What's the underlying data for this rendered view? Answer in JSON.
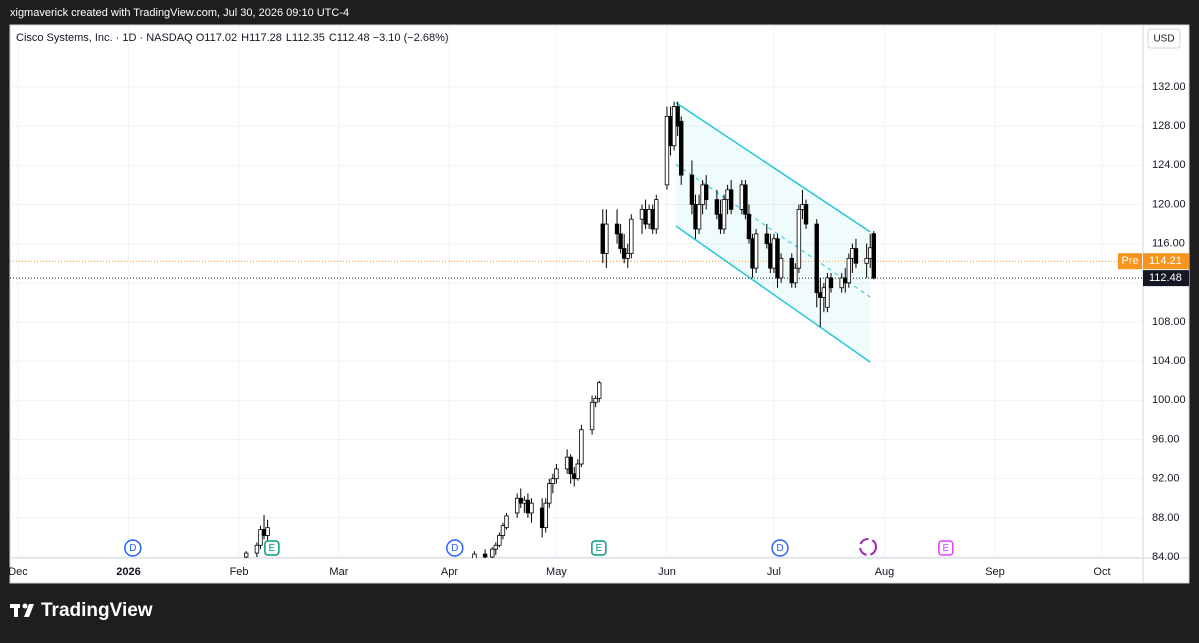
{
  "header": {
    "text": "xigmaverick created with TradingView.com, Jul 30, 2026 09:10 UTC-4"
  },
  "chart_data": {
    "type": "candlestick",
    "symbol": "Cisco Systems, Inc. · 1D · NASDAQ",
    "ohlc_labels": [
      {
        "key": "O",
        "value": 117.02
      },
      {
        "key": "H",
        "value": 117.28
      },
      {
        "key": "L",
        "value": 112.35
      },
      {
        "key": "C",
        "value": 112.48
      }
    ],
    "change": "−3.10 (−2.68%)",
    "currency": "USD",
    "x": [
      64,
      67,
      68,
      69,
      70,
      128,
      131,
      133,
      134,
      135,
      136,
      137,
      140,
      141,
      142,
      143,
      144,
      147,
      148,
      149,
      150,
      151,
      154,
      155,
      156,
      157,
      158,
      161,
      162,
      163,
      164,
      165,
      168,
      169,
      170,
      171,
      172,
      175,
      176,
      177,
      178,
      179,
      182,
      183,
      184,
      185,
      186,
      189,
      190,
      191,
      192,
      193,
      196,
      197,
      198,
      199,
      200,
      203,
      204,
      205,
      206,
      207,
      210,
      211,
      212,
      213,
      214,
      217,
      218,
      219,
      220,
      221,
      224,
      225,
      226,
      227,
      228,
      231,
      232,
      233,
      234,
      235,
      238,
      239,
      240
    ],
    "open": [
      84.0,
      84.4,
      85.2,
      86.8,
      86.2,
      83.8,
      84.3,
      84.0,
      84.8,
      85.2,
      86.2,
      87.0,
      88.5,
      90.0,
      89.5,
      89.8,
      88.5,
      89.0,
      87.0,
      89.5,
      91.5,
      92.0,
      93.0,
      94.2,
      92.5,
      92.0,
      93.5,
      97.0,
      99.8,
      100.2,
      118.0,
      115.0,
      118.0,
      117.0,
      115.5,
      114.5,
      115.0,
      118.5,
      119.5,
      118.0,
      119.5,
      117.5,
      122.0,
      129.0,
      126.0,
      130.0,
      128.5,
      123.0,
      120.0,
      117.5,
      120.0,
      122.0,
      120.5,
      119.0,
      117.5,
      120.5,
      121.5,
      119.5,
      122.0,
      119.0,
      116.5,
      113.5,
      117.0,
      116.0,
      113.5,
      116.5,
      112.5,
      114.5,
      112.0,
      113.5,
      119.5,
      120.0,
      118.0,
      111.0,
      110.5,
      109.5,
      112.5,
      111.5,
      112.5,
      112.0,
      114.5,
      115.5,
      114.0,
      114.5,
      117.02
    ],
    "high": [
      84.6,
      85.5,
      87.2,
      88.3,
      87.8,
      84.6,
      84.8,
      85.0,
      85.5,
      86.5,
      87.5,
      88.5,
      90.5,
      91.0,
      90.2,
      90.5,
      90.0,
      90.0,
      90.0,
      92.0,
      92.5,
      93.5,
      95.0,
      94.5,
      93.2,
      94.0,
      97.5,
      100.5,
      100.5,
      102.0,
      119.5,
      119.5,
      119.5,
      118.0,
      117.0,
      116.0,
      119.0,
      120.0,
      120.5,
      120.0,
      120.0,
      121.0,
      130.0,
      130.0,
      130.5,
      130.5,
      129.0,
      124.5,
      121.0,
      121.0,
      122.5,
      123.0,
      121.5,
      120.5,
      121.0,
      122.0,
      122.5,
      122.5,
      122.5,
      120.0,
      117.0,
      117.5,
      118.0,
      117.0,
      117.0,
      117.0,
      115.0,
      115.0,
      114.0,
      120.0,
      121.5,
      120.5,
      118.5,
      112.5,
      112.0,
      113.0,
      113.0,
      113.0,
      113.5,
      115.0,
      116.0,
      116.5,
      116.0,
      117.0,
      117.28
    ],
    "low": [
      83.7,
      84.0,
      84.8,
      85.8,
      85.5,
      83.5,
      83.6,
      83.8,
      84.2,
      85.0,
      85.8,
      86.8,
      88.0,
      89.0,
      88.5,
      88.0,
      87.5,
      86.0,
      86.5,
      89.0,
      90.5,
      91.5,
      92.5,
      91.5,
      91.2,
      91.8,
      93.2,
      96.5,
      99.3,
      99.8,
      114.0,
      113.5,
      116.0,
      115.0,
      114.0,
      113.5,
      114.5,
      117.0,
      117.5,
      117.5,
      117.0,
      117.0,
      121.5,
      125.0,
      125.5,
      127.0,
      122.0,
      119.0,
      116.5,
      117.0,
      119.0,
      119.5,
      118.5,
      117.0,
      117.0,
      119.0,
      119.0,
      119.0,
      118.5,
      116.0,
      112.5,
      113.0,
      115.5,
      113.0,
      113.0,
      111.5,
      112.0,
      111.5,
      111.5,
      113.0,
      118.5,
      117.5,
      109.5,
      107.5,
      109.0,
      109.0,
      111.0,
      111.0,
      111.0,
      111.5,
      113.0,
      113.5,
      112.5,
      113.5,
      112.35
    ],
    "close": [
      84.4,
      85.2,
      86.8,
      86.2,
      87.0,
      84.3,
      84.0,
      84.8,
      85.2,
      86.2,
      87.2,
      88.2,
      90.0,
      89.5,
      89.8,
      88.5,
      89.5,
      87.0,
      89.5,
      91.5,
      92.0,
      93.0,
      94.2,
      92.5,
      92.0,
      93.5,
      97.0,
      99.8,
      100.2,
      101.8,
      115.0,
      118.0,
      117.0,
      115.5,
      114.5,
      115.0,
      118.5,
      119.5,
      118.0,
      119.5,
      117.5,
      120.5,
      129.0,
      126.0,
      130.0,
      128.0,
      123.0,
      120.0,
      117.5,
      120.0,
      122.0,
      120.5,
      119.0,
      117.5,
      120.5,
      121.5,
      119.5,
      122.0,
      119.0,
      116.5,
      113.5,
      117.0,
      116.0,
      113.5,
      116.5,
      112.5,
      114.5,
      112.0,
      113.5,
      119.5,
      120.0,
      118.0,
      111.0,
      110.5,
      111.5,
      112.5,
      111.5,
      112.5,
      112.0,
      114.5,
      115.5,
      114.0,
      114.5,
      115.58,
      112.48
    ],
    "up_color": "#ffffff",
    "down_color": "#000000",
    "xlim": [
      -2.24,
      315.5
    ],
    "xticks": [
      {
        "value": 0,
        "label": "Dec"
      },
      {
        "value": 31,
        "label": "2026"
      },
      {
        "value": 62,
        "label": "Feb"
      },
      {
        "value": 90,
        "label": "Mar"
      },
      {
        "value": 121,
        "label": "Apr"
      },
      {
        "value": 151,
        "label": "May"
      },
      {
        "value": 182,
        "label": "Jun"
      },
      {
        "value": 212,
        "label": "Jul"
      },
      {
        "value": 243,
        "label": "Aug"
      },
      {
        "value": 274,
        "label": "Sep"
      },
      {
        "value": 304,
        "label": "Oct"
      }
    ],
    "ylim": [
      83.9,
      138.33
    ],
    "yticks": [
      {
        "value": 84,
        "label": "84.00"
      },
      {
        "value": 88,
        "label": "88.00"
      },
      {
        "value": 92,
        "label": "92.00"
      },
      {
        "value": 96,
        "label": "96.00"
      },
      {
        "value": 100,
        "label": "100.00"
      },
      {
        "value": 104,
        "label": "104.00"
      },
      {
        "value": 108,
        "label": "108.00"
      },
      {
        "value": 112,
        "label": "112.00"
      },
      {
        "value": 116,
        "label": "116.00"
      },
      {
        "value": 120,
        "label": "120.00"
      },
      {
        "value": 124,
        "label": "124.00"
      },
      {
        "value": 128,
        "label": "128.00"
      },
      {
        "value": 132,
        "label": "132.00"
      }
    ],
    "grid": true,
    "price_lines": [
      {
        "name": "Pre",
        "value": 114.21,
        "color": "#f7941d"
      },
      {
        "value": 112.48,
        "color": "#131722"
      }
    ],
    "channel": {
      "color": "#26c6da",
      "upper": [
        {
          "x": 184.5,
          "y": 130.4
        },
        {
          "x": 239,
          "y": 117.2
        }
      ],
      "lower": [
        {
          "x": 184.5,
          "y": 117.8
        },
        {
          "x": 239,
          "y": 103.9
        }
      ]
    },
    "events": [
      {
        "x": 32.2,
        "label": "D",
        "color": "#2962ff"
      },
      {
        "x": 122.5,
        "label": "D",
        "color": "#2962ff"
      },
      {
        "x": 213.7,
        "label": "D",
        "color": "#2962ff"
      },
      {
        "x": 71.2,
        "label": "E",
        "color": "#089981"
      },
      {
        "x": 162.9,
        "label": "E",
        "color": "#089981"
      },
      {
        "x": 260.2,
        "label": "E",
        "color": "#e040fb"
      }
    ]
  },
  "footer": {
    "brand": "TradingView"
  }
}
